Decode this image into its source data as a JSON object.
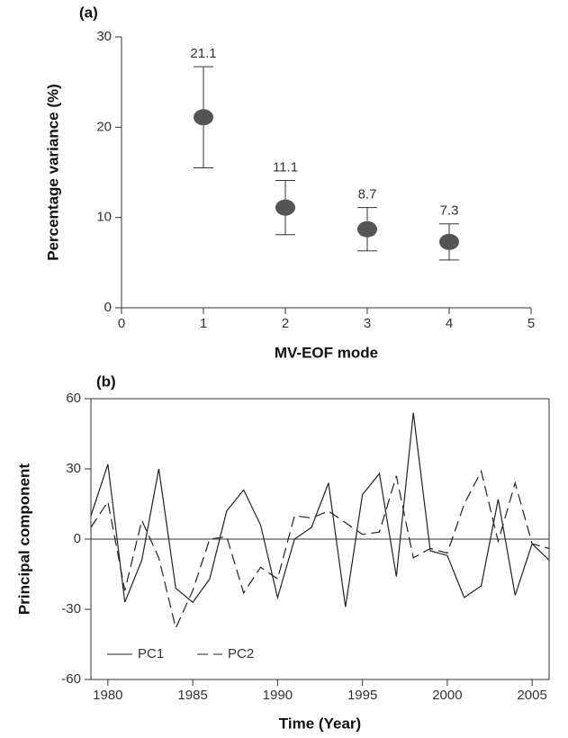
{
  "chart_data": [
    {
      "type": "scatter",
      "panel_label": "(a)",
      "xlabel": "MV-EOF mode",
      "ylabel": "Percentage variance (%)",
      "x": [
        1,
        2,
        3,
        4
      ],
      "values": [
        21.1,
        11.1,
        8.7,
        7.3
      ],
      "value_labels": [
        "21.1",
        "11.1",
        "8.7",
        "7.3"
      ],
      "errors": [
        5.6,
        3.0,
        2.4,
        2.0
      ],
      "color": "#555555",
      "xlim": [
        0,
        5
      ],
      "xticks": [
        0,
        1,
        2,
        3,
        4,
        5
      ],
      "ylim": [
        0,
        30
      ],
      "yticks": [
        0,
        10,
        20,
        30
      ]
    },
    {
      "type": "line",
      "panel_label": "(b)",
      "xlabel": "Time (Year)",
      "ylabel": "Principal component",
      "x": [
        1979,
        1980,
        1981,
        1982,
        1983,
        1984,
        1985,
        1986,
        1987,
        1988,
        1989,
        1990,
        1991,
        1992,
        1993,
        1994,
        1995,
        1996,
        1997,
        1998,
        1999,
        2000,
        2001,
        2002,
        2003,
        2004,
        2005,
        2006
      ],
      "series": [
        {
          "name": "PC1",
          "color": "#222222",
          "style": "solid",
          "values": [
            10,
            32,
            -27,
            -9,
            30,
            -21,
            -27,
            -17,
            12,
            21,
            6,
            -25,
            0,
            5,
            24,
            -29,
            19,
            28,
            -16,
            54,
            -5,
            -7,
            -25,
            -20,
            17,
            -24,
            -2,
            -9
          ]
        },
        {
          "name": "PC2",
          "color": "#222222",
          "style": "dashed",
          "values": [
            5,
            16,
            -22,
            8,
            -8,
            -38,
            -22,
            0,
            1,
            -23,
            -12,
            -17,
            10,
            9,
            12,
            7,
            2,
            3,
            27,
            -8,
            -4,
            -6,
            15,
            29,
            -1,
            24,
            -2,
            -4
          ]
        }
      ],
      "xlim": [
        1979,
        2006
      ],
      "xticks": [
        1980,
        1985,
        1990,
        1995,
        2000,
        2005
      ],
      "ylim": [
        -60,
        60
      ],
      "yticks": [
        -60,
        -30,
        0,
        30,
        60
      ],
      "zero_line": true,
      "legend": "lower left"
    }
  ]
}
